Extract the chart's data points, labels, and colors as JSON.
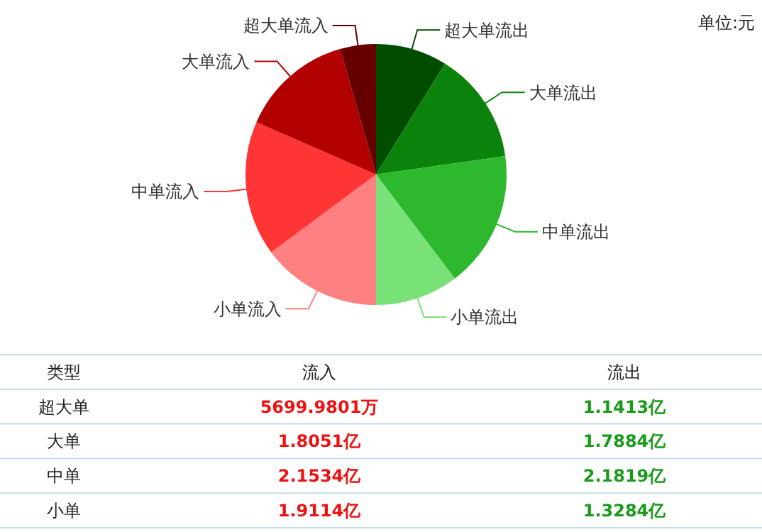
{
  "chart_data": [
    {
      "type": "pie",
      "categories": [
        "超大单流出",
        "大单流出",
        "中单流出",
        "小单流出",
        "小单流入",
        "中单流入",
        "大单流入",
        "超大单流入"
      ],
      "values": [
        8.86,
        13.89,
        16.94,
        10.31,
        14.84,
        16.72,
        14.01,
        4.43
      ],
      "colors": [
        "#004d00",
        "#0b820b",
        "#2db82d",
        "#78e278",
        "#ff8080",
        "#ff3535",
        "#b20000",
        "#660000"
      ],
      "annotations": [
        "单位:元"
      ]
    },
    {
      "type": "other",
      "annotations": [
        "类型",
        "流入",
        "流出",
        "超大单",
        "5699.9801万",
        "1.1413亿",
        "大单",
        "1.8051亿",
        "1.7884亿",
        "中单",
        "2.1534亿",
        "2.1819亿",
        "小单",
        "1.9114亿",
        "1.3284亿"
      ]
    }
  ]
}
